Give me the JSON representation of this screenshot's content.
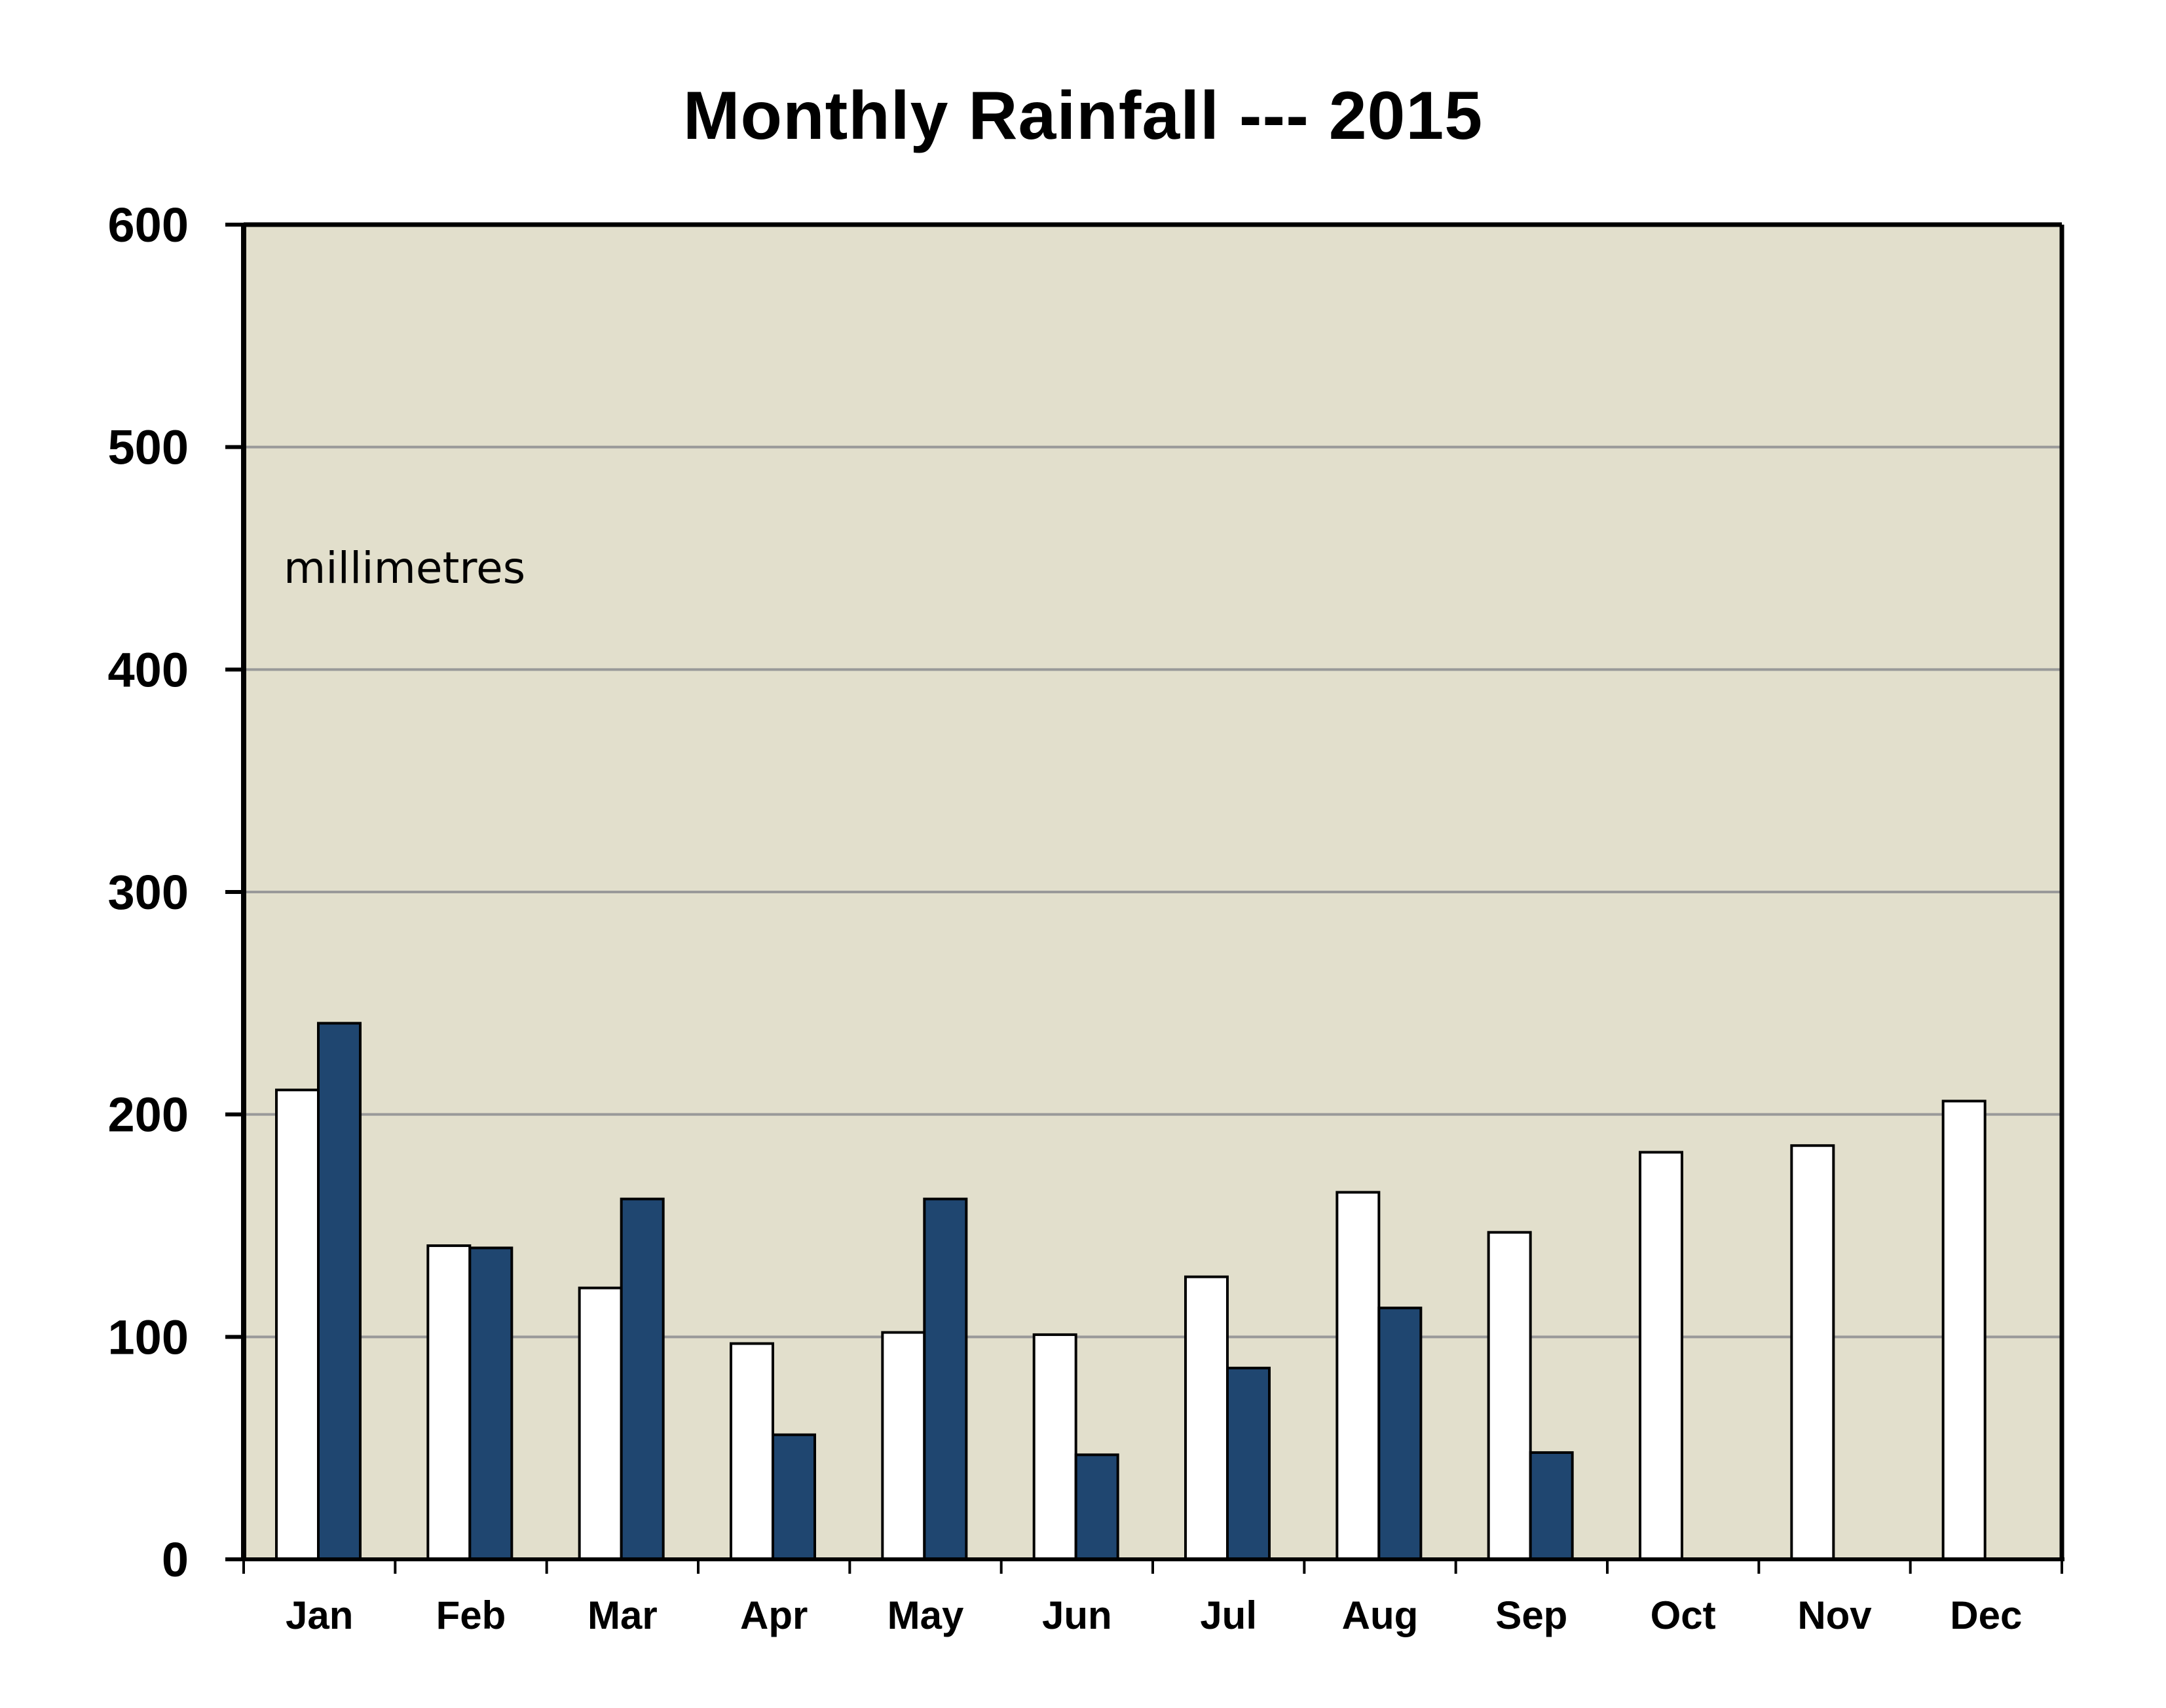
{
  "chart_data": {
    "type": "bar",
    "title": "Monthly Rainfall --- 2015",
    "annotation": "millimetres",
    "categories": [
      "Jan",
      "Feb",
      "Mar",
      "Apr",
      "May",
      "Jun",
      "Jul",
      "Aug",
      "Sep",
      "Oct",
      "Nov",
      "Dec"
    ],
    "series": [
      {
        "values": [
          211,
          141,
          122,
          97,
          102,
          101,
          127,
          165,
          147,
          183,
          186,
          206
        ],
        "color": "#ffffff"
      },
      {
        "values": [
          241,
          140,
          162,
          56,
          162,
          47,
          86,
          113,
          48,
          null,
          null,
          null
        ],
        "color": "#1f4670"
      }
    ],
    "ylim": [
      0,
      600
    ],
    "yticks": [
      0,
      100,
      200,
      300,
      400,
      500,
      600
    ],
    "grid": true,
    "plot_background": "#e2dfcc",
    "gridline_color": "#999999"
  }
}
